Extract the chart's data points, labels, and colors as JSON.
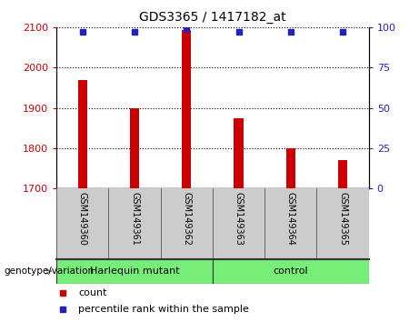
{
  "title": "GDS3365 / 1417182_at",
  "samples": [
    "GSM149360",
    "GSM149361",
    "GSM149362",
    "GSM149363",
    "GSM149364",
    "GSM149365"
  ],
  "bar_values": [
    1970,
    1900,
    2093,
    1875,
    1800,
    1770
  ],
  "percentile_values": [
    97,
    97,
    99,
    97,
    97,
    97
  ],
  "bar_color": "#cc0000",
  "dot_color": "#2222bb",
  "ylim_left": [
    1700,
    2100
  ],
  "ylim_right": [
    0,
    100
  ],
  "yticks_left": [
    1700,
    1800,
    1900,
    2000,
    2100
  ],
  "yticks_right": [
    0,
    25,
    50,
    75,
    100
  ],
  "group_label": "genotype/variation",
  "groups": [
    {
      "label": "Harlequin mutant",
      "start": 0,
      "end": 2,
      "color": "#77ee77"
    },
    {
      "label": "control",
      "start": 3,
      "end": 5,
      "color": "#77ee77"
    }
  ],
  "legend_count_label": "count",
  "legend_percentile_label": "percentile rank within the sample",
  "bar_color_tick": "#cc0000",
  "ylabel_right_color": "#2222bb",
  "xtick_bg": "#cccccc",
  "plot_bg": "#ffffff",
  "grid_color": "#000000"
}
